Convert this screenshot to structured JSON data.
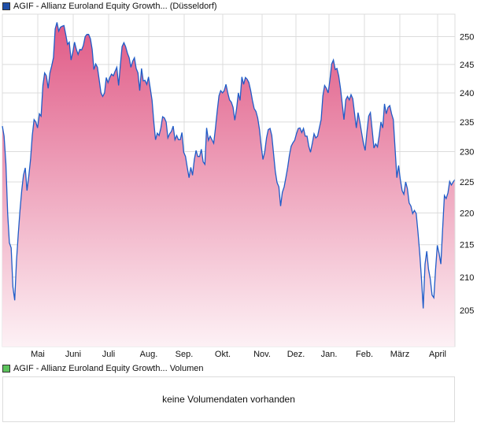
{
  "price_legend": {
    "label": "AGIF - Allianz Euroland Equity Growth... (Düsseldorf)",
    "color": "#1f4fa8"
  },
  "volume_legend": {
    "label": "AGIF - Allianz Euroland Equity Growth... Volumen",
    "color": "#5cc35c"
  },
  "volume_panel": {
    "message": "keine Volumendaten vorhanden"
  },
  "chart_data": {
    "type": "area",
    "title": "AGIF - Allianz Euroland Equity Growth... (Düsseldorf)",
    "xlabel": "",
    "ylabel": "",
    "yscale": "log",
    "ylim": [
      199.7,
      254.1
    ],
    "yticks": [
      205,
      210,
      215,
      220,
      225,
      230,
      235,
      240,
      245,
      250
    ],
    "xticks": [
      "Mai",
      "Juni",
      "Juli",
      "Aug.",
      "Sep.",
      "Okt.",
      "Nov.",
      "Dez.",
      "Jan.",
      "Feb.",
      "März",
      "April"
    ],
    "grid": true,
    "colors": {
      "line": "#1f5cc8",
      "fill_top": "#e05a86",
      "fill_bottom": "#fdf1f5",
      "grid": "#dcdcdc"
    },
    "series": [
      {
        "name": "AGIF - Allianz Euroland Equity Growth... (Düsseldorf)",
        "values": [
          234.3,
          232.6,
          228,
          220,
          215.3,
          214.5,
          208.5,
          206.5,
          212.4,
          216.5,
          220.4,
          223.6,
          226.1,
          227.3,
          223.6,
          226,
          228.7,
          232.7,
          235.4,
          235,
          234,
          236.4,
          236,
          241.3,
          243.5,
          243,
          240.8,
          243.5,
          244.7,
          246.2,
          251.4,
          252.6,
          251,
          251.7,
          251.9,
          252,
          250.4,
          248.6,
          249,
          245.8,
          247.2,
          249,
          247.7,
          246.8,
          247.7,
          247.6,
          248.4,
          250,
          250.4,
          250.4,
          249.6,
          247.7,
          244.1,
          245.1,
          244.5,
          242.2,
          240,
          239.4,
          240,
          242.7,
          241.8,
          242.7,
          243.3,
          243,
          243.8,
          244.5,
          241.3,
          244.9,
          248.2,
          248.9,
          248.2,
          247,
          246.2,
          244.5,
          245.6,
          246.2,
          244.3,
          243.5,
          240.4,
          244.3,
          242.1,
          242.2,
          241.5,
          242.8,
          240.8,
          238.7,
          235,
          232,
          233.1,
          232.7,
          234,
          235.9,
          235.7,
          235,
          232.3,
          233,
          233.4,
          234.3,
          232,
          232.7,
          232,
          232,
          233.2,
          229.9,
          229.2,
          227.4,
          225.7,
          227.4,
          226.1,
          228.7,
          230.2,
          229.2,
          229.2,
          230.4,
          228.3,
          227.9,
          234,
          231.9,
          232.6,
          232,
          231.4,
          233.9,
          236.9,
          239.5,
          240.4,
          240,
          240.4,
          241.5,
          240,
          238.8,
          238.4,
          237.5,
          235.3,
          237.3,
          240,
          238.7,
          242.8,
          241.5,
          242.7,
          242.4,
          241.8,
          240.4,
          238.7,
          237.3,
          236.8,
          235.7,
          233.7,
          230.9,
          228.7,
          230,
          232.3,
          233.7,
          233.9,
          232.7,
          229.6,
          226.7,
          224.9,
          224.2,
          221.1,
          223.3,
          224.2,
          225.7,
          227.4,
          229.4,
          230.9,
          231.5,
          231.9,
          233,
          233.9,
          234,
          233.2,
          233.9,
          232.6,
          232.6,
          230.9,
          229.9,
          231.4,
          233,
          232.3,
          232.6,
          234,
          235.4,
          239.5,
          241.3,
          240.8,
          240,
          242.2,
          245.1,
          245.8,
          244.1,
          244.3,
          243,
          240.8,
          238.1,
          235.4,
          238.8,
          239.4,
          238.8,
          239.7,
          239,
          236.4,
          234,
          236.6,
          235,
          233.2,
          231.4,
          230.2,
          233.2,
          236,
          236.6,
          233.7,
          230.6,
          231.3,
          230.8,
          232.7,
          235,
          234,
          238.1,
          236.4,
          237.5,
          237.8,
          236.4,
          235.4,
          230.6,
          225.7,
          227.7,
          225.4,
          223.6,
          223,
          225,
          223.9,
          221.6,
          221.1,
          219.9,
          220.4,
          219.9,
          217,
          213.6,
          209.7,
          205.3,
          212,
          214,
          211.2,
          209.7,
          207.3,
          206.9,
          211.2,
          214.9,
          213.6,
          212,
          217.3,
          222.8,
          222.3,
          223.2,
          225.1,
          224.5,
          225,
          225.4
        ]
      }
    ]
  }
}
